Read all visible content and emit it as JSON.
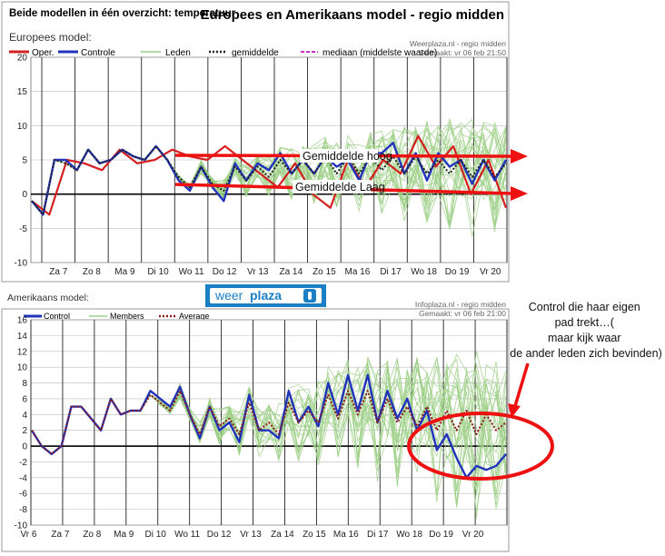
{
  "header": {
    "left_title": "Beide modellen in één overzicht: temperatuur",
    "right_title": "Europees en Amerikaans model - regio midden"
  },
  "colors": {
    "oper": "#d42020",
    "control": "#2233bb",
    "members": "#9ccf86",
    "mean": "#222222",
    "average": "#8b1a1a",
    "median": "#cc33cc",
    "annotation": "#ee1111",
    "zero_line": "#000000",
    "grid": "#bbbbbb",
    "panel_bg": "#ffffff"
  },
  "logo": {
    "text_a": "weer",
    "text_b": "plaza",
    "icon": "thermometer-icon"
  },
  "annotations": {
    "high": "Gemiddelde hoog",
    "low": "Gemiddelde Laag",
    "control_note": "Control die haar eigen pad trekt…( maar kijk waar de ander leden zich bevinden)"
  },
  "chart_data": [
    {
      "type": "line",
      "panel_title": "Europees model:",
      "source": "Weerplaza.nl - regio midden",
      "made": "Gemaakt: vr 06 feb 21:50",
      "legend": [
        "Oper.",
        "Controle",
        "Leden",
        "gemiddelde",
        "mediaan (middelste waarde)"
      ],
      "x_tick_labels": [
        "Za 7",
        "Zo 8",
        "Ma 9",
        "Di 10",
        "Wo 11",
        "Do 12",
        "Vr 13",
        "Za 14",
        "Zo 15",
        "Ma 16",
        "Di 17",
        "Wo 18",
        "Do 19",
        "Vr 20"
      ],
      "ylim": [
        -10,
        20
      ],
      "yticks": [
        -10,
        -5,
        0,
        5,
        10,
        15,
        20
      ],
      "grid": true,
      "series": [
        {
          "name": "Oper.",
          "values": [
            -1,
            -3,
            5,
            4.5,
            3.5,
            6.5,
            4.5,
            5,
            6.5,
            5.5,
            5,
            7,
            5,
            3,
            1,
            4.5,
            0,
            -2,
            5,
            1,
            5,
            3,
            8.5,
            4,
            7,
            0,
            5,
            -2
          ]
        },
        {
          "name": "Controle",
          "values": [
            -1,
            -3,
            5,
            5,
            3.5,
            6.5,
            4.5,
            5,
            6.5,
            5.5,
            5,
            7,
            5,
            2,
            0.5,
            4,
            1,
            -1,
            4.5,
            2,
            4.5,
            3.5,
            6,
            3,
            5,
            3,
            5.5,
            4,
            5,
            2,
            6,
            6,
            7.5,
            3,
            6,
            2,
            6,
            4,
            5,
            1.5,
            5,
            2,
            5
          ]
        },
        {
          "name": "gemiddelde",
          "values": [
            -1,
            -3,
            5,
            4.5,
            3.5,
            6.5,
            4.5,
            5,
            6.5,
            5.5,
            5,
            7,
            5,
            2.5,
            1,
            4,
            1.5,
            0.5,
            4,
            2,
            4,
            2.5,
            5,
            3,
            5,
            3,
            5.5,
            3,
            5.5,
            3,
            5.5,
            3.5,
            5.5,
            3,
            5.5,
            3,
            5,
            3,
            5,
            2.5,
            5,
            2.5,
            4.5
          ]
        }
      ]
    },
    {
      "type": "line",
      "panel_title": "Amerikaans model:",
      "source": "Infoplaza.nl - regio midden",
      "made": "Gemaakt: vr 06 feb 21:00",
      "legend": [
        "Control",
        "Members",
        "Average"
      ],
      "x_tick_labels": [
        "Vr 6",
        "Za 7",
        "Zo 8",
        "Ma 9",
        "Di 10",
        "Wo 11",
        "Do 12",
        "Vr 13",
        "Za 14",
        "Zo 15",
        "Ma 16",
        "Di 17",
        "Wo 18",
        "Do 19",
        "Vr 20"
      ],
      "ylim": [
        -10,
        16
      ],
      "yticks": [
        -10,
        -8,
        -6,
        -4,
        -2,
        0,
        2,
        4,
        6,
        8,
        10,
        12,
        14,
        16
      ],
      "grid": true,
      "series": [
        {
          "name": "Control",
          "values": [
            2,
            0,
            -1,
            0,
            5,
            5,
            3.5,
            2,
            6,
            4,
            4.5,
            4.5,
            7,
            6,
            5,
            7.5,
            4,
            1,
            5,
            2,
            3,
            0.5,
            6.5,
            2,
            2,
            1,
            7,
            3,
            5,
            2.5,
            8,
            4,
            9,
            4.5,
            9,
            3,
            7,
            3.5,
            6,
            2,
            4.5,
            -0.5,
            1.5,
            -1.5,
            -4,
            -2.5,
            -3,
            -2.5,
            -1
          ]
        },
        {
          "name": "Average",
          "values": [
            2,
            0,
            -1,
            0,
            5,
            5,
            3.5,
            2,
            6,
            4,
            4.5,
            4.5,
            6.5,
            5.5,
            4.5,
            7,
            4,
            1.5,
            5,
            2.5,
            3.5,
            1.5,
            5.5,
            2,
            3,
            1.5,
            5.5,
            3,
            4.5,
            3,
            6.5,
            3.5,
            7,
            4,
            7,
            3,
            6,
            3,
            5,
            2.5,
            5,
            2,
            4.5,
            2,
            4.5,
            1.5,
            4,
            2,
            3
          ]
        }
      ]
    }
  ]
}
